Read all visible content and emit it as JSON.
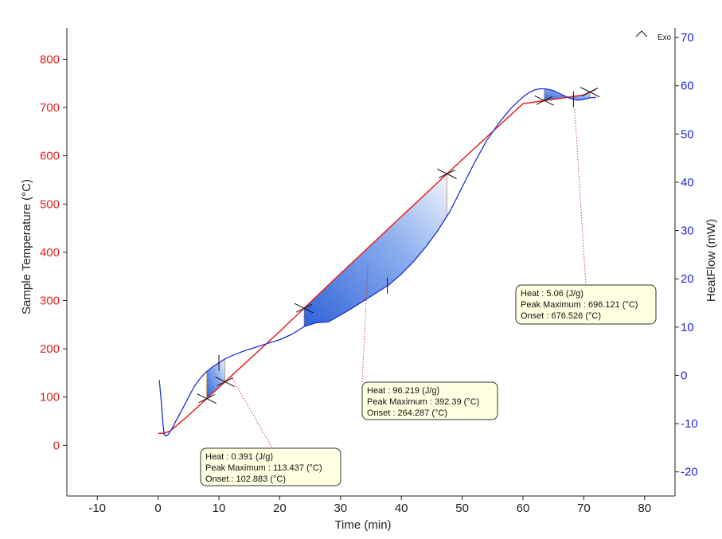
{
  "chart_data": {
    "type": "line",
    "xlabel": "Time (min)",
    "ylabel_left": "Sample Temperature (°C)",
    "ylabel_right": "HeatFlow (mW)",
    "exo_label": "Exo",
    "xlim": [
      -15,
      85
    ],
    "ylim_left": [
      -105,
      865
    ],
    "ylim_right": [
      -25,
      72
    ],
    "x_ticks": [
      "-10",
      "0",
      "10",
      "20",
      "30",
      "40",
      "50",
      "60",
      "70",
      "80"
    ],
    "y_left_ticks": [
      "0",
      "100",
      "200",
      "300",
      "400",
      "500",
      "600",
      "700",
      "800"
    ],
    "y_right_ticks": [
      "-20",
      "-10",
      "0",
      "10",
      "20",
      "30",
      "40",
      "50",
      "60",
      "70"
    ],
    "colors": {
      "temperature": "#e8211d",
      "heatflow": "#1c2fd8",
      "peak_fill": "#2f63d9",
      "annotation_bg": "#ffffe1"
    },
    "series": [
      {
        "name": "Sample Temperature",
        "axis": "left",
        "x": [
          0,
          1,
          2,
          5,
          10,
          20,
          30,
          40,
          50,
          60,
          70,
          72
        ],
        "y": [
          25,
          25,
          30,
          62,
          120,
          236,
          356,
          474,
          592,
          708,
          726,
          738
        ]
      },
      {
        "name": "HeatFlow",
        "axis": "right",
        "x": [
          0.2,
          0.5,
          0.8,
          1.0,
          1.3,
          1.7,
          2.3,
          3.0,
          4.0,
          5.0,
          6.0,
          7.0,
          8.0,
          9.0,
          10.0,
          11.0,
          12.0,
          13.0,
          14.0,
          16.0,
          18.0,
          20.0,
          22.0,
          24.0,
          26.0,
          28.0,
          30.0,
          32.0,
          34.0,
          36.0,
          38.0,
          40.0,
          42.0,
          44.0,
          46.0,
          48.0,
          50.0,
          52.0,
          54.0,
          56.0,
          58.0,
          60.0,
          61.0,
          62.0,
          63.0,
          64.0,
          65.0,
          66.0,
          67.0,
          68.0,
          69.0,
          70.0,
          71.0,
          72.0
        ],
        "y": [
          -1,
          -5,
          -10,
          -12.2,
          -12.6,
          -12.2,
          -11,
          -9.3,
          -7,
          -4.5,
          -2.2,
          -0.5,
          0.8,
          1.8,
          2.6,
          3.4,
          4.0,
          4.5,
          5.0,
          5.8,
          6.6,
          7.4,
          8.5,
          10.1,
          10.9,
          11.1,
          12.5,
          14.0,
          15.6,
          17.2,
          18.8,
          21.0,
          23.6,
          26.6,
          30.0,
          34.0,
          39.0,
          44.0,
          48.6,
          52.2,
          55.3,
          57.7,
          58.6,
          59.2,
          59.4,
          59.3,
          59.0,
          58.4,
          57.8,
          57.3,
          57.0,
          57.2,
          57.5,
          57.6
        ]
      }
    ],
    "peaks": [
      {
        "heat": "Heat :  0.391 (J/g)",
        "peak": "Peak Maximum :  113.437 (°C)",
        "onset": "Onset :  102.883 (°C)",
        "start_x": 8,
        "end_x": 11,
        "peak_x": 10
      },
      {
        "heat": "Heat :  96.219 (J/g)",
        "peak": "Peak Maximum :  392.39 (°C)",
        "onset": "Onset :  264.287 (°C)",
        "start_x": 24,
        "end_x": 47.5,
        "peak_x": 34.5
      },
      {
        "heat": "Heat :  5.06 (J/g)",
        "peak": "Peak Maximum :  696.121 (°C)",
        "onset": "Onset :  676.526 (°C)",
        "start_x": 63.5,
        "end_x": 71,
        "peak_x": 68.5
      }
    ]
  }
}
